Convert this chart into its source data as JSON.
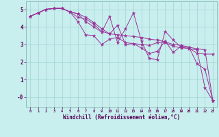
{
  "background_color": "#c8eeee",
  "line_color": "#993399",
  "xlabel": "Windchill (Refroidissement éolien,°C)",
  "xlim": [
    -0.5,
    23.5
  ],
  "ylim": [
    -0.55,
    5.45
  ],
  "xticks": [
    0,
    1,
    2,
    3,
    4,
    5,
    6,
    7,
    8,
    9,
    10,
    11,
    12,
    13,
    14,
    15,
    16,
    17,
    18,
    19,
    20,
    21,
    22,
    23
  ],
  "yticks": [
    0,
    1,
    2,
    3,
    4,
    5
  ],
  "ytick_labels": [
    "-0",
    "1",
    "2",
    "3",
    "4",
    "5"
  ],
  "series": [
    {
      "x": [
        0,
        1,
        2,
        3,
        4,
        5,
        6,
        7,
        8,
        9,
        10,
        11,
        12,
        13,
        14,
        15,
        16,
        17,
        18,
        19,
        20,
        21,
        22,
        23
      ],
      "y": [
        4.6,
        4.8,
        5.0,
        5.05,
        5.05,
        4.85,
        4.3,
        3.55,
        3.5,
        3.0,
        3.3,
        3.4,
        3.1,
        3.05,
        3.0,
        2.95,
        3.1,
        3.1,
        2.9,
        2.8,
        2.8,
        2.5,
        2.45,
        2.45
      ]
    },
    {
      "x": [
        0,
        1,
        2,
        3,
        4,
        5,
        6,
        7,
        8,
        9,
        10,
        11,
        12,
        13,
        14,
        15,
        16,
        17,
        18,
        19,
        20,
        21,
        22,
        23
      ],
      "y": [
        4.6,
        4.8,
        5.0,
        5.05,
        5.05,
        4.85,
        4.75,
        4.3,
        4.0,
        3.7,
        4.6,
        3.1,
        3.9,
        4.8,
        3.2,
        2.2,
        2.15,
        3.75,
        3.25,
        2.85,
        2.75,
        2.7,
        0.55,
        -0.2
      ]
    },
    {
      "x": [
        0,
        1,
        2,
        3,
        4,
        5,
        6,
        7,
        8,
        9,
        10,
        11,
        12,
        13,
        14,
        15,
        16,
        17,
        18,
        19,
        20,
        21,
        22,
        23
      ],
      "y": [
        4.6,
        4.8,
        5.0,
        5.05,
        5.05,
        4.85,
        4.75,
        4.55,
        4.25,
        3.9,
        3.6,
        4.1,
        3.0,
        3.05,
        2.8,
        2.5,
        2.6,
        3.2,
        2.55,
        2.9,
        2.85,
        1.9,
        1.6,
        -0.2
      ]
    },
    {
      "x": [
        0,
        1,
        2,
        3,
        4,
        5,
        6,
        7,
        8,
        9,
        10,
        11,
        12,
        13,
        14,
        15,
        16,
        17,
        18,
        19,
        20,
        21,
        22,
        23
      ],
      "y": [
        4.6,
        4.8,
        5.0,
        5.05,
        5.05,
        4.85,
        4.55,
        4.45,
        4.15,
        3.75,
        3.6,
        3.55,
        3.5,
        3.45,
        3.4,
        3.3,
        3.25,
        3.15,
        3.0,
        2.95,
        2.85,
        2.75,
        2.7,
        -0.2
      ]
    }
  ]
}
